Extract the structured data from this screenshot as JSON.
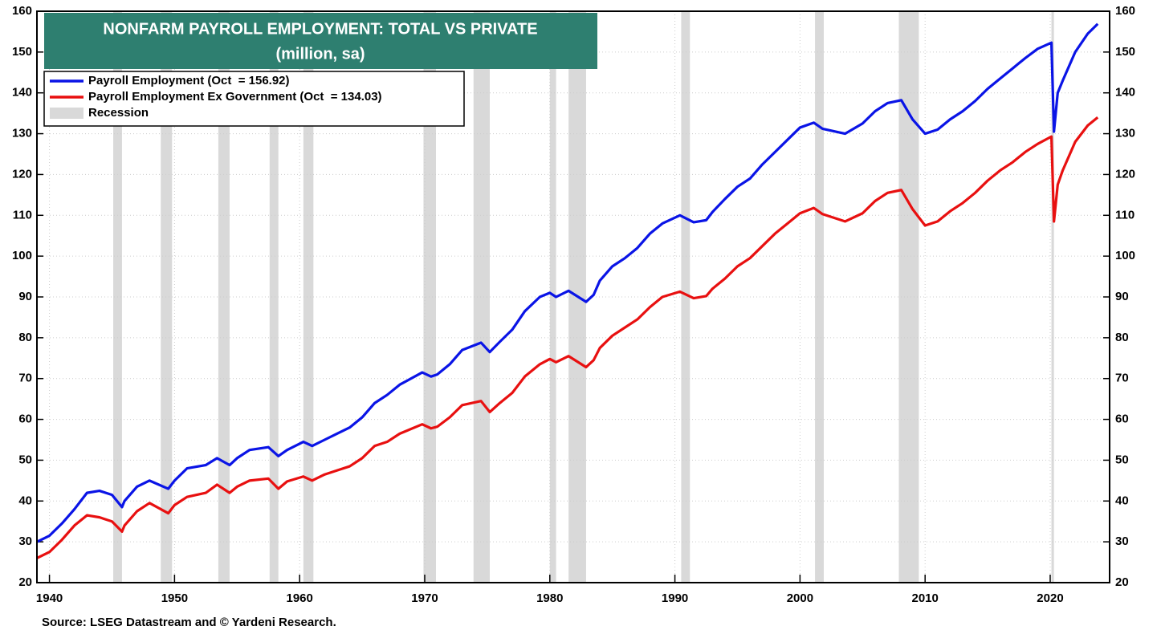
{
  "chart_data": {
    "type": "line",
    "title": "NONFARM PAYROLL EMPLOYMENT: TOTAL VS PRIVATE",
    "subtitle": "(million, sa)",
    "source": "Source: LSEG Datastream and © Yardeni Research.",
    "x": [
      1939.0,
      1940,
      1941,
      1942,
      1943,
      1944,
      1945,
      1945.8,
      1946,
      1947,
      1948,
      1949.5,
      1950,
      1951,
      1952.5,
      1953.4,
      1954.4,
      1955,
      1956,
      1957.5,
      1958.3,
      1959,
      1960.3,
      1961,
      1962,
      1963,
      1964,
      1965,
      1966,
      1967,
      1968,
      1969.8,
      1970.5,
      1971,
      1972,
      1973,
      1974.5,
      1975.2,
      1976,
      1977,
      1978,
      1979.2,
      1980,
      1980.5,
      1981.5,
      1982.9,
      1983.5,
      1984,
      1985,
      1986,
      1987,
      1988,
      1989,
      1990.4,
      1991.5,
      1992.5,
      1993,
      1994,
      1995,
      1996,
      1997,
      1998,
      1999,
      2000,
      2001.1,
      2001.8,
      2003.6,
      2005,
      2006,
      2007,
      2008.1,
      2009,
      2010,
      2011,
      2012,
      2013,
      2014,
      2015,
      2016,
      2017,
      2018,
      2019,
      2020.1,
      2020.3,
      2020.6,
      2021,
      2022,
      2023,
      2023.8
    ],
    "series": [
      {
        "name": "Payroll Employment (Oct  = 156.92)",
        "color": "#0a14e6",
        "values": [
          30,
          31.5,
          34.5,
          38,
          42,
          42.5,
          41.5,
          38.5,
          40,
          43.5,
          45,
          43,
          45,
          48,
          48.8,
          50.5,
          48.8,
          50.5,
          52.5,
          53.2,
          51,
          52.5,
          54.5,
          53.5,
          55,
          56.5,
          58,
          60.5,
          64,
          66,
          68.5,
          71.5,
          70.5,
          71,
          73.5,
          77,
          78.8,
          76.5,
          79,
          82,
          86.5,
          90,
          91,
          90,
          91.5,
          88.8,
          90.5,
          94,
          97.5,
          99.5,
          102,
          105.5,
          108,
          110,
          108.3,
          108.8,
          110.8,
          114,
          117,
          119,
          122.5,
          125.5,
          128.5,
          131.5,
          132.7,
          131.2,
          130,
          132.5,
          135.5,
          137.5,
          138.2,
          133.5,
          130,
          131,
          133.5,
          135.5,
          138,
          141,
          143.5,
          146,
          148.5,
          150.8,
          152.3,
          130.5,
          140,
          143,
          150,
          154.5,
          156.9
        ]
      },
      {
        "name": "Payroll Employment Ex Government (Oct  = 134.03)",
        "color": "#e81010",
        "values": [
          26,
          27.5,
          30.5,
          34,
          36.5,
          36,
          35,
          32.5,
          34,
          37.5,
          39.5,
          37,
          39,
          41,
          42,
          44,
          42,
          43.5,
          45,
          45.5,
          43,
          44.8,
          46,
          45,
          46.5,
          47.5,
          48.5,
          50.5,
          53.5,
          54.5,
          56.5,
          58.8,
          57.8,
          58.2,
          60.5,
          63.5,
          64.5,
          61.8,
          64,
          66.5,
          70.5,
          73.5,
          74.8,
          74,
          75.5,
          72.8,
          74.5,
          77.5,
          80.5,
          82.5,
          84.5,
          87.5,
          90,
          91.3,
          89.7,
          90.2,
          92,
          94.5,
          97.5,
          99.5,
          102.5,
          105.5,
          108,
          110.5,
          111.8,
          110.3,
          108.5,
          110.5,
          113.5,
          115.5,
          116.2,
          111.5,
          107.5,
          108.5,
          111,
          113,
          115.5,
          118.5,
          121,
          123,
          125.5,
          127.5,
          129.3,
          108.5,
          117.5,
          121,
          128,
          132,
          134
        ]
      }
    ],
    "recession_label": "Recession",
    "recession_color": "#d9d9d9",
    "recessions": [
      [
        1945.1,
        1945.8
      ],
      [
        1948.9,
        1949.8
      ],
      [
        1953.5,
        1954.4
      ],
      [
        1957.6,
        1958.3
      ],
      [
        1960.3,
        1961.1
      ],
      [
        1969.9,
        1970.9
      ],
      [
        1973.9,
        1975.2
      ],
      [
        1980.0,
        1980.5
      ],
      [
        1981.5,
        1982.9
      ],
      [
        1990.5,
        1991.2
      ],
      [
        2001.2,
        2001.9
      ],
      [
        2007.9,
        2009.5
      ],
      [
        2020.1,
        2020.3
      ]
    ],
    "xlim": [
      1939,
      2024.75
    ],
    "xticks": [
      1940,
      1950,
      1960,
      1970,
      1980,
      1990,
      2000,
      2010,
      2020
    ],
    "ylim": [
      20,
      160
    ],
    "yticks": [
      20,
      30,
      40,
      50,
      60,
      70,
      80,
      90,
      100,
      110,
      120,
      130,
      140,
      150,
      160
    ],
    "y2lim": [
      20,
      160
    ],
    "y2ticks": [
      20,
      30,
      40,
      50,
      60,
      70,
      80,
      90,
      100,
      110,
      120,
      130,
      140,
      150,
      160
    ],
    "grid": true,
    "legend": "upper left"
  }
}
